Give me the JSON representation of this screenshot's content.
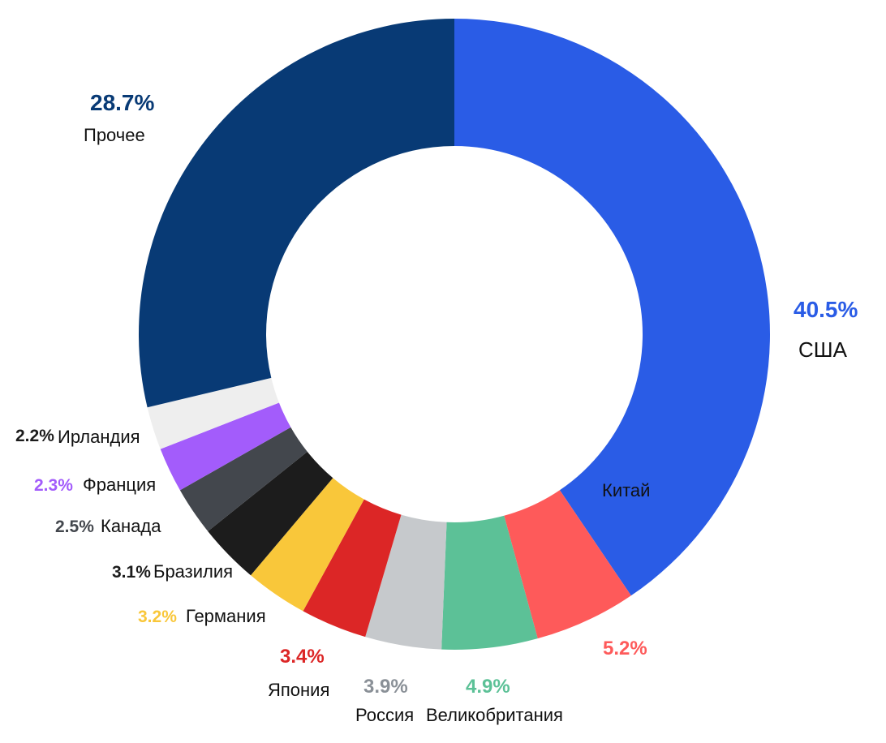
{
  "chart_data": {
    "type": "pie",
    "title": "",
    "slices": [
      {
        "label": "США",
        "value": 40.5,
        "label_pct": "40.5%",
        "color": "#2a5ce6"
      },
      {
        "label": "Китай",
        "value": 5.2,
        "label_pct": "5.2%",
        "color": "#fe5a5a"
      },
      {
        "label": "Великобритания",
        "value": 4.9,
        "label_pct": "4.9%",
        "color": "#5cc197"
      },
      {
        "label": "Россия",
        "value": 3.9,
        "label_pct": "3.9%",
        "color": "#c6c9cc"
      },
      {
        "label": "Япония",
        "value": 3.4,
        "label_pct": "3.4%",
        "color": "#dc2626"
      },
      {
        "label": "Германия",
        "value": 3.2,
        "label_pct": "3.2%",
        "color": "#f9c73a"
      },
      {
        "label": "Бразилия",
        "value": 3.1,
        "label_pct": "3.1%",
        "color": "#1c1c1c"
      },
      {
        "label": "Канада",
        "value": 2.5,
        "label_pct": "2.5%",
        "color": "#43474d"
      },
      {
        "label": "Франция",
        "value": 2.3,
        "label_pct": "2.3%",
        "color": "#a35cfb"
      },
      {
        "label": "Ирландия",
        "value": 2.2,
        "label_pct": "2.2%",
        "color": "#eeeeee"
      },
      {
        "label": "Прочее",
        "value": 28.7,
        "label_pct": "28.7%",
        "color": "#083a75"
      }
    ],
    "label_colors": {
      "США": "#2a5ce6",
      "Китай": "#fe5a5a",
      "Великобритания": "#5cc197",
      "Россия": "#8a9097",
      "Япония": "#dc2626",
      "Германия": "#f9c73a",
      "Бразилия": "#1c1c1c",
      "Канада": "#43474d",
      "Франция": "#a35cfb",
      "Ирландия": "#1c1c1c",
      "Прочее": "#083a75"
    },
    "donut": true,
    "legend": "none"
  }
}
